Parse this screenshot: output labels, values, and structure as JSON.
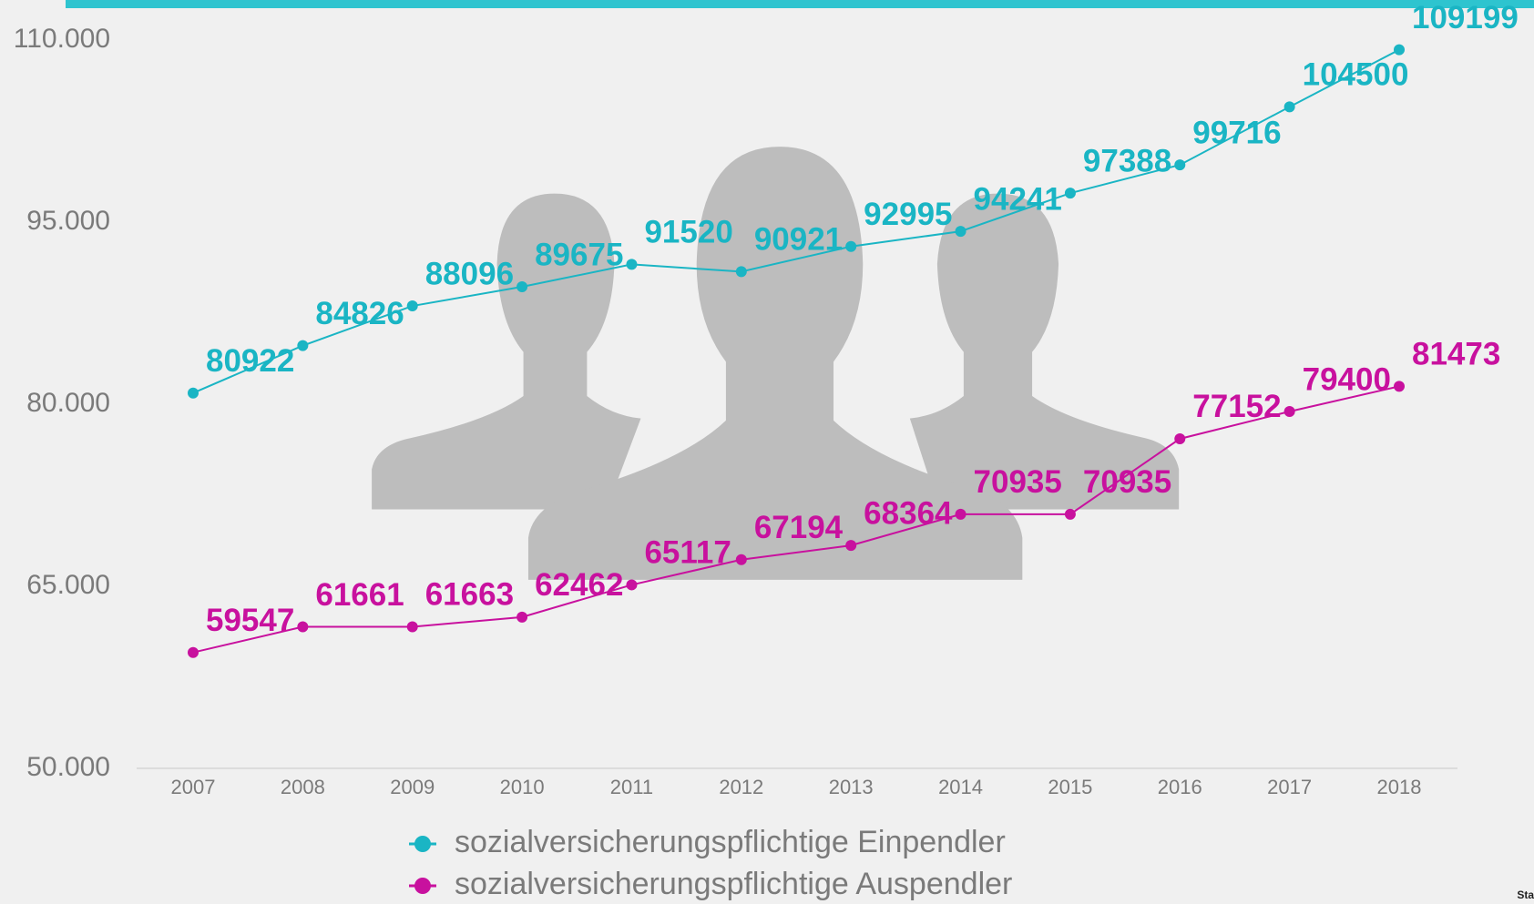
{
  "chart_data": {
    "type": "line",
    "categories": [
      "2007",
      "2008",
      "2009",
      "2010",
      "2011",
      "2012",
      "2013",
      "2014",
      "2015",
      "2016",
      "2017",
      "2018"
    ],
    "series": [
      {
        "name": "sozialversicherungspflichtige Einpendler",
        "color": "#1ab5c4",
        "values": [
          80922,
          84826,
          88096,
          89675,
          91520,
          90921,
          92995,
          94241,
          97388,
          99716,
          104500,
          109199
        ]
      },
      {
        "name": "sozialversicherungspflichtige Auspendler",
        "color": "#c8119e",
        "values": [
          59547,
          61661,
          61663,
          62462,
          65117,
          67194,
          68364,
          70935,
          70935,
          77152,
          79400,
          81473
        ]
      }
    ],
    "ylim": [
      50000,
      110000
    ],
    "yticks": [
      {
        "value": 50000,
        "label": "50.000"
      },
      {
        "value": 65000,
        "label": "65.000"
      },
      {
        "value": 80000,
        "label": "80.000"
      },
      {
        "value": 95000,
        "label": "95.000"
      },
      {
        "value": 110000,
        "label": "110.000"
      }
    ],
    "data_labels": true,
    "source": "Stadt Dortmund"
  }
}
